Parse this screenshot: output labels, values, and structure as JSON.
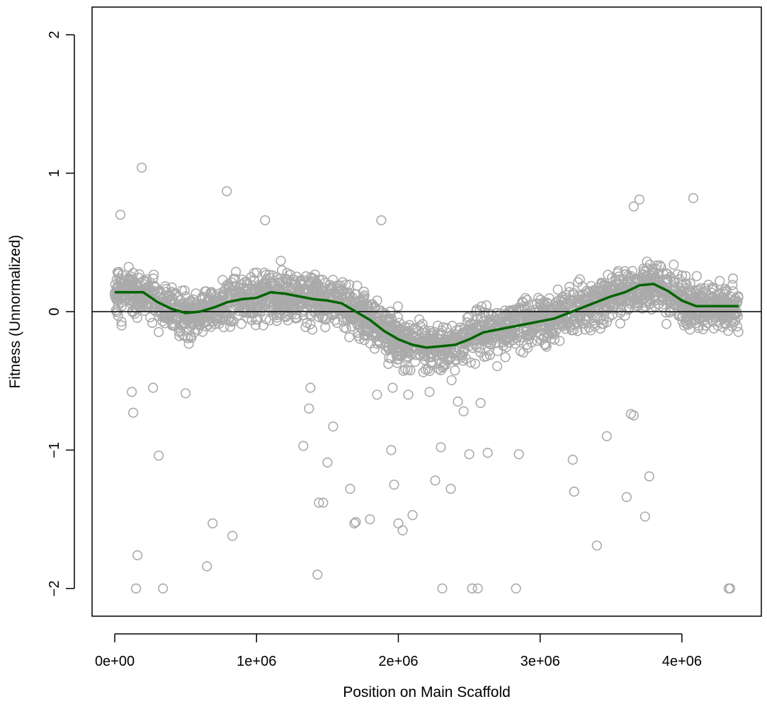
{
  "chart_data": {
    "type": "scatter",
    "title": "",
    "xlabel": "Position on Main Scaffold",
    "ylabel": "Fitness (Unnormalized)",
    "xlim": [
      -160000,
      4560000
    ],
    "ylim": [
      -2.2,
      2.2
    ],
    "x_ticks": [
      0,
      1000000,
      2000000,
      3000000,
      4000000
    ],
    "x_tick_labels": [
      "0e+00",
      "1e+06",
      "2e+06",
      "3e+06",
      "4e+06"
    ],
    "y_ticks": [
      -2,
      -1,
      0,
      1,
      2
    ],
    "y_tick_labels": [
      "−2",
      "−1",
      "0",
      "1",
      "2"
    ],
    "grid": false,
    "reference_line": {
      "y": 0,
      "color": "#000000"
    },
    "colors": {
      "points": "#aaaaaa",
      "trend": "#006400",
      "axis": "#000000"
    },
    "trend": {
      "x": [
        0,
        100000,
        200000,
        300000,
        400000,
        500000,
        600000,
        700000,
        800000,
        900000,
        1000000,
        1100000,
        1200000,
        1300000,
        1400000,
        1500000,
        1600000,
        1700000,
        1800000,
        1900000,
        2000000,
        2100000,
        2200000,
        2300000,
        2400000,
        2500000,
        2600000,
        2700000,
        2800000,
        2900000,
        3000000,
        3100000,
        3200000,
        3300000,
        3400000,
        3500000,
        3600000,
        3700000,
        3800000,
        3900000,
        4000000,
        4100000,
        4200000,
        4300000,
        4400000
      ],
      "y": [
        0.14,
        0.14,
        0.14,
        0.07,
        0.02,
        -0.01,
        0.0,
        0.03,
        0.07,
        0.09,
        0.1,
        0.14,
        0.13,
        0.11,
        0.09,
        0.08,
        0.06,
        0.0,
        -0.06,
        -0.14,
        -0.2,
        -0.24,
        -0.26,
        -0.25,
        -0.24,
        -0.2,
        -0.15,
        -0.13,
        -0.11,
        -0.09,
        -0.07,
        -0.05,
        -0.01,
        0.03,
        0.07,
        0.11,
        0.14,
        0.19,
        0.2,
        0.15,
        0.08,
        0.04,
        0.04,
        0.04,
        0.04
      ]
    },
    "outliers": {
      "x": [
        40000,
        190000,
        160000,
        150000,
        310000,
        340000,
        650000,
        690000,
        830000,
        1440000,
        1430000,
        1470000,
        1500000,
        1330000,
        1540000,
        1660000,
        1690000,
        1800000,
        1880000,
        1950000,
        1970000,
        2000000,
        2030000,
        2100000,
        2260000,
        2300000,
        2310000,
        2370000,
        2500000,
        2520000,
        2560000,
        2630000,
        2830000,
        2850000,
        3230000,
        3240000,
        3400000,
        3470000,
        3610000,
        3640000,
        3660000,
        3740000,
        3770000,
        4080000,
        4330000,
        4340000,
        790000,
        1060000,
        1700000,
        3660000,
        3700000,
        1850000,
        2220000,
        1960000,
        2420000,
        130000,
        120000,
        270000,
        500000,
        1370000,
        1380000,
        2460000,
        2580000,
        2070000
      ],
      "y": [
        0.7,
        1.04,
        -1.76,
        -2.0,
        -1.04,
        -2.0,
        -1.84,
        -1.53,
        -1.62,
        -1.38,
        -1.9,
        -1.38,
        -1.09,
        -0.97,
        -0.83,
        -1.28,
        -1.53,
        -1.5,
        0.66,
        -1.0,
        -1.25,
        -1.53,
        -1.58,
        -1.47,
        -1.22,
        -0.98,
        -2.0,
        -1.28,
        -1.03,
        -2.0,
        -2.0,
        -1.02,
        -2.0,
        -1.03,
        -1.07,
        -1.3,
        -1.69,
        -0.9,
        -1.34,
        -0.74,
        -0.75,
        -1.48,
        -1.19,
        0.82,
        -2.0,
        -2.0,
        0.87,
        0.66,
        -1.52,
        0.76,
        0.81,
        -0.6,
        -0.58,
        -0.55,
        -0.65,
        -0.73,
        -0.58,
        -0.55,
        -0.59,
        -0.7,
        -0.55,
        -0.72,
        -0.66,
        -0.6
      ]
    }
  }
}
